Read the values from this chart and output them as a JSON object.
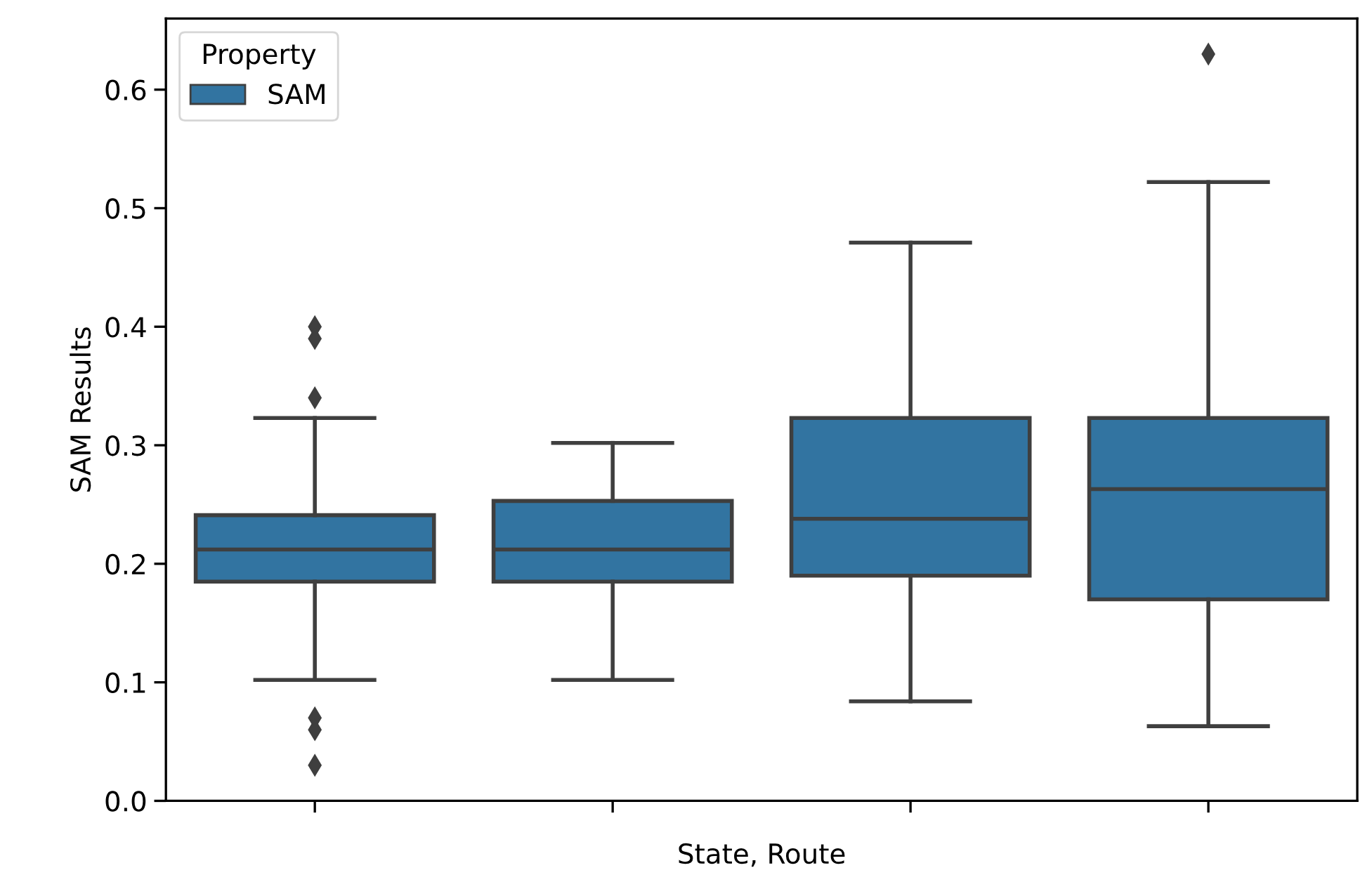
{
  "chart_data": {
    "type": "box",
    "xlabel": "State, Route",
    "ylabel": "SAM Results",
    "legend_title": "Property",
    "legend": "top left",
    "categories": [
      null,
      null,
      null,
      null
    ],
    "ylim": [
      0,
      0.66
    ],
    "yticks": [
      {
        "value": 0,
        "label": "0.0"
      },
      0.1,
      0.2,
      0.3,
      0.4,
      0.5,
      0.6
    ],
    "grid": false,
    "series": [
      {
        "name": "SAM",
        "color": "#3274a1",
        "boxes": [
          {
            "low": 0.102,
            "q1": 0.185,
            "median": 0.212,
            "q3": 0.241,
            "high": 0.323,
            "outliers": [
              0.4,
              0.39,
              0.34,
              0.07,
              0.06,
              0.03
            ]
          },
          {
            "low": 0.102,
            "q1": 0.185,
            "median": 0.212,
            "q3": 0.253,
            "high": 0.302
          },
          {
            "low": 0.084,
            "q1": 0.19,
            "median": 0.238,
            "q3": 0.323,
            "high": 0.471
          },
          {
            "low": 0.063,
            "q1": 0.17,
            "median": 0.263,
            "q3": 0.323,
            "high": 0.522,
            "outliers": [
              0.63
            ]
          }
        ]
      }
    ]
  }
}
